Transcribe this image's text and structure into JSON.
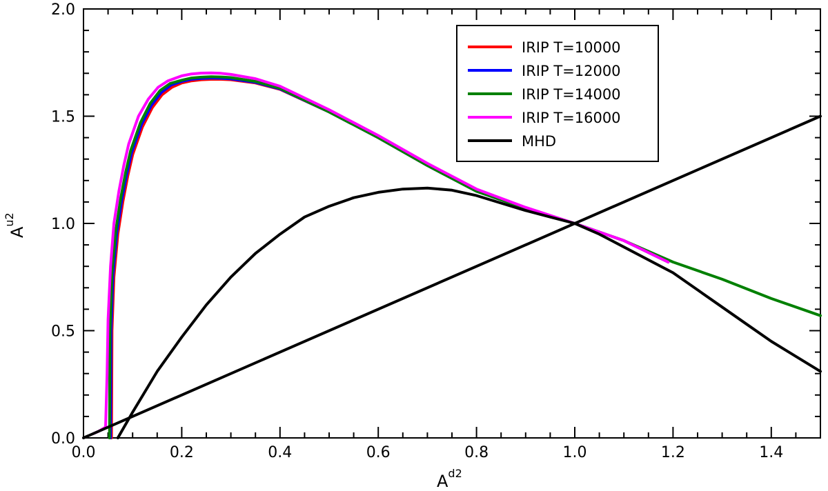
{
  "chart_data": {
    "type": "line",
    "title": "",
    "xlabel": {
      "base": "A",
      "sup": "d2"
    },
    "ylabel": {
      "base": "A",
      "sup": "u2"
    },
    "xlim": [
      0.0,
      1.5
    ],
    "ylim": [
      0.0,
      2.0
    ],
    "xticks": [
      0.0,
      0.2,
      0.4,
      0.6,
      0.8,
      1.0,
      1.2,
      1.4
    ],
    "xtick_labels": [
      "0.0",
      "0.2",
      "0.4",
      "0.6",
      "0.8",
      "1.0",
      "1.2",
      "1.4"
    ],
    "yticks": [
      0.0,
      0.5,
      1.0,
      1.5,
      2.0
    ],
    "ytick_labels": [
      "0.0",
      "0.5",
      "1.0",
      "1.5",
      "2.0"
    ],
    "grid": false,
    "legend_position": "top-right",
    "series": [
      {
        "name": "IRIP T=10000",
        "color": "#ff0000",
        "x": [
          0.057,
          0.058,
          0.062,
          0.07,
          0.08,
          0.09,
          0.1,
          0.12,
          0.14,
          0.16,
          0.18,
          0.2,
          0.22,
          0.24,
          0.26,
          0.28,
          0.3,
          0.35,
          0.4,
          0.5,
          0.6,
          0.7,
          0.8,
          0.9,
          1.0,
          1.1,
          1.19
        ],
        "y": [
          0.0,
          0.5,
          0.75,
          0.95,
          1.1,
          1.22,
          1.32,
          1.45,
          1.54,
          1.6,
          1.635,
          1.655,
          1.665,
          1.67,
          1.672,
          1.672,
          1.67,
          1.655,
          1.625,
          1.52,
          1.4,
          1.27,
          1.15,
          1.07,
          1.0,
          0.92,
          0.82
        ]
      },
      {
        "name": "IRIP T=12000",
        "color": "#0000ff",
        "x": [
          0.055,
          0.056,
          0.06,
          0.068,
          0.078,
          0.088,
          0.098,
          0.118,
          0.138,
          0.158,
          0.178,
          0.2,
          0.22,
          0.24,
          0.26,
          0.28,
          0.3,
          0.35,
          0.4,
          0.5,
          0.6,
          0.7,
          0.8,
          0.9,
          1.0,
          1.1,
          1.19
        ],
        "y": [
          0.0,
          0.5,
          0.76,
          0.96,
          1.11,
          1.23,
          1.33,
          1.46,
          1.55,
          1.61,
          1.645,
          1.662,
          1.672,
          1.676,
          1.678,
          1.677,
          1.674,
          1.658,
          1.627,
          1.52,
          1.4,
          1.27,
          1.15,
          1.07,
          1.0,
          0.92,
          0.82
        ]
      },
      {
        "name": "IRIP T=14000",
        "color": "#008000",
        "x": [
          0.053,
          0.054,
          0.058,
          0.066,
          0.076,
          0.086,
          0.096,
          0.116,
          0.136,
          0.156,
          0.176,
          0.2,
          0.22,
          0.24,
          0.26,
          0.28,
          0.3,
          0.35,
          0.4,
          0.5,
          0.6,
          0.7,
          0.8,
          0.9,
          1.0,
          1.1,
          1.2,
          1.3,
          1.4,
          1.5
        ],
        "y": [
          0.0,
          0.5,
          0.77,
          0.97,
          1.12,
          1.24,
          1.34,
          1.47,
          1.56,
          1.62,
          1.652,
          1.668,
          1.678,
          1.682,
          1.684,
          1.683,
          1.68,
          1.662,
          1.63,
          1.52,
          1.4,
          1.27,
          1.15,
          1.07,
          1.0,
          0.92,
          0.82,
          0.74,
          0.65,
          0.57
        ]
      },
      {
        "name": "IRIP T=16000",
        "color": "#ff00ff",
        "x": [
          0.02,
          0.03,
          0.045,
          0.048,
          0.05,
          0.055,
          0.062,
          0.072,
          0.082,
          0.092,
          0.112,
          0.132,
          0.152,
          0.172,
          0.2,
          0.22,
          0.24,
          0.26,
          0.28,
          0.3,
          0.35,
          0.4,
          0.5,
          0.6,
          0.7,
          0.8,
          0.9,
          1.0,
          1.1,
          1.19
        ],
        "y": [
          0.02,
          0.03,
          0.05,
          0.3,
          0.55,
          0.8,
          1.0,
          1.15,
          1.27,
          1.37,
          1.5,
          1.58,
          1.635,
          1.665,
          1.688,
          1.697,
          1.701,
          1.702,
          1.7,
          1.695,
          1.675,
          1.64,
          1.53,
          1.41,
          1.28,
          1.16,
          1.075,
          1.0,
          0.92,
          0.82
        ]
      },
      {
        "name": "MHD",
        "color": "#000000",
        "x": [
          0.07,
          0.1,
          0.15,
          0.2,
          0.25,
          0.3,
          0.35,
          0.4,
          0.45,
          0.5,
          0.55,
          0.6,
          0.65,
          0.7,
          0.75,
          0.8,
          0.85,
          0.9,
          0.95,
          1.0,
          1.05,
          1.1,
          1.15,
          1.2,
          1.25,
          1.3,
          1.35,
          1.4,
          1.45,
          1.5
        ],
        "y": [
          0.0,
          0.12,
          0.31,
          0.47,
          0.62,
          0.75,
          0.86,
          0.95,
          1.03,
          1.08,
          1.12,
          1.145,
          1.16,
          1.165,
          1.155,
          1.13,
          1.095,
          1.06,
          1.03,
          1.0,
          0.95,
          0.89,
          0.83,
          0.77,
          0.69,
          0.61,
          0.53,
          0.45,
          0.38,
          0.31
        ]
      },
      {
        "name": "",
        "color": "#000000",
        "x": [
          0.0,
          1.5
        ],
        "y": [
          0.0,
          1.5
        ]
      }
    ]
  }
}
